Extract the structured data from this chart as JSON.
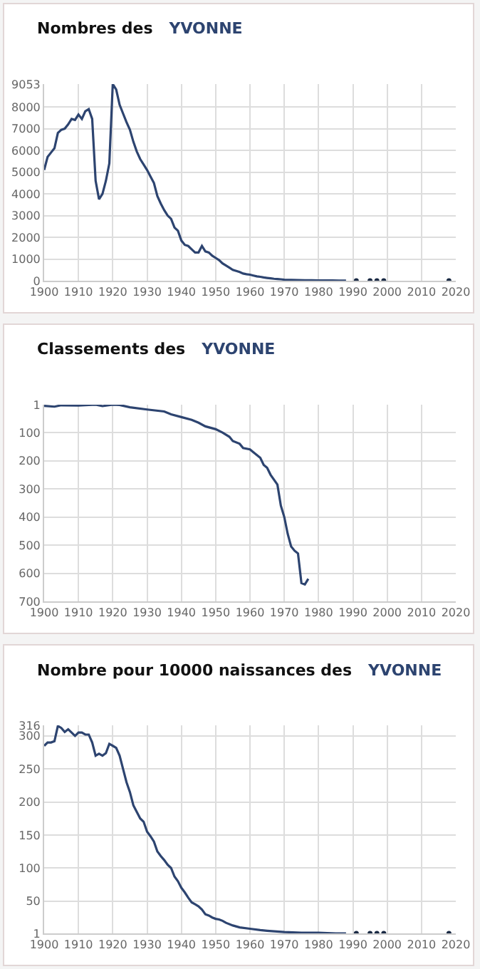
{
  "chart_data": [
    {
      "type": "line",
      "title": "Nombres des",
      "subtitle": "YVONNE",
      "xlim": [
        1900,
        2020
      ],
      "xticks": [
        1900,
        1910,
        1920,
        1930,
        1940,
        1950,
        1960,
        1970,
        1980,
        1990,
        2000,
        2010,
        2020
      ],
      "ylim": [
        0,
        9053
      ],
      "yticks": [
        0,
        1000,
        2000,
        3000,
        4000,
        5000,
        6000,
        7000,
        8000,
        9053
      ],
      "grid": true,
      "series": [
        {
          "color": "#2d4470",
          "x": [
            1900,
            1901,
            1902,
            1903,
            1904,
            1905,
            1906,
            1907,
            1908,
            1909,
            1910,
            1911,
            1912,
            1913,
            1914,
            1915,
            1916,
            1917,
            1918,
            1919,
            1920,
            1921,
            1922,
            1923,
            1924,
            1925,
            1926,
            1927,
            1928,
            1929,
            1930,
            1931,
            1932,
            1933,
            1934,
            1935,
            1936,
            1937,
            1938,
            1939,
            1940,
            1941,
            1942,
            1943,
            1944,
            1945,
            1946,
            1947,
            1948,
            1949,
            1950,
            1951,
            1952,
            1953,
            1954,
            1955,
            1956,
            1957,
            1958,
            1959,
            1960,
            1961,
            1962,
            1963,
            1964,
            1965,
            1966,
            1967,
            1968,
            1969,
            1970,
            1972,
            1974,
            1976,
            1978,
            1980,
            1982,
            1984,
            1986,
            1988
          ],
          "values": [
            5100,
            5700,
            5900,
            6100,
            6800,
            6950,
            7000,
            7200,
            7450,
            7400,
            7650,
            7450,
            7800,
            7900,
            7450,
            4600,
            3750,
            4000,
            4600,
            5400,
            9053,
            8800,
            8100,
            7700,
            7300,
            6950,
            6400,
            5950,
            5600,
            5350,
            5100,
            4800,
            4500,
            3900,
            3550,
            3250,
            3000,
            2850,
            2450,
            2300,
            1850,
            1650,
            1600,
            1450,
            1300,
            1300,
            1600,
            1350,
            1300,
            1150,
            1050,
            950,
            800,
            700,
            600,
            500,
            450,
            400,
            330,
            300,
            280,
            240,
            200,
            180,
            150,
            130,
            110,
            90,
            80,
            65,
            50,
            40,
            30,
            25,
            20,
            15,
            12,
            10,
            8,
            5
          ]
        },
        {
          "type": "scatter",
          "marker": "circle",
          "color": "#1a2a44",
          "x": [
            1991,
            1995,
            1997,
            1999,
            2018
          ],
          "values": [
            0,
            0,
            0,
            0,
            0
          ]
        }
      ]
    },
    {
      "type": "line",
      "title": "Classements des",
      "subtitle": "YVONNE",
      "xlim": [
        1900,
        2020
      ],
      "xticks": [
        1900,
        1910,
        1920,
        1930,
        1940,
        1950,
        1960,
        1970,
        1980,
        1990,
        2000,
        2010,
        2020
      ],
      "ylim": [
        700,
        1
      ],
      "yticks": [
        1,
        100,
        200,
        300,
        400,
        500,
        600,
        700
      ],
      "grid": true,
      "series": [
        {
          "color": "#2d4470",
          "x": [
            1900,
            1903,
            1905,
            1910,
            1915,
            1917,
            1920,
            1922,
            1925,
            1930,
            1935,
            1937,
            1940,
            1943,
            1945,
            1947,
            1950,
            1952,
            1954,
            1955,
            1957,
            1958,
            1960,
            1961,
            1963,
            1964,
            1965,
            1966,
            1968,
            1969,
            1970,
            1971,
            1972,
            1973,
            1974,
            1975,
            1976,
            1977
          ],
          "values": [
            5,
            8,
            3,
            4,
            1,
            6,
            1,
            2,
            10,
            18,
            25,
            35,
            45,
            55,
            65,
            78,
            88,
            100,
            115,
            130,
            140,
            155,
            160,
            170,
            190,
            215,
            225,
            250,
            285,
            360,
            400,
            460,
            505,
            520,
            530,
            635,
            640,
            620
          ]
        }
      ]
    },
    {
      "type": "line",
      "title": "Nombre pour 10000 naissances des",
      "subtitle": "YVONNE",
      "xlim": [
        1900,
        2020
      ],
      "xticks": [
        1900,
        1910,
        1920,
        1930,
        1940,
        1950,
        1960,
        1970,
        1980,
        1990,
        2000,
        2010,
        2020
      ],
      "ylim": [
        1,
        316
      ],
      "yticks": [
        1,
        50,
        100,
        150,
        200,
        250,
        300,
        316
      ],
      "grid": true,
      "series": [
        {
          "color": "#2d4470",
          "x": [
            1900,
            1901,
            1902,
            1903,
            1904,
            1905,
            1906,
            1907,
            1908,
            1909,
            1910,
            1911,
            1912,
            1913,
            1914,
            1915,
            1916,
            1917,
            1918,
            1919,
            1920,
            1921,
            1922,
            1923,
            1924,
            1925,
            1926,
            1927,
            1928,
            1929,
            1930,
            1931,
            1932,
            1933,
            1934,
            1935,
            1936,
            1937,
            1938,
            1939,
            1940,
            1941,
            1942,
            1943,
            1944,
            1945,
            1946,
            1947,
            1948,
            1949,
            1950,
            1951,
            1952,
            1953,
            1955,
            1957,
            1960,
            1963,
            1965,
            1970,
            1975,
            1980,
            1985,
            1988
          ],
          "values": [
            285,
            290,
            290,
            292,
            315,
            312,
            306,
            310,
            305,
            300,
            305,
            305,
            302,
            302,
            290,
            270,
            273,
            270,
            274,
            288,
            285,
            282,
            270,
            250,
            230,
            215,
            195,
            185,
            175,
            170,
            155,
            148,
            140,
            125,
            118,
            112,
            105,
            100,
            87,
            80,
            70,
            63,
            55,
            48,
            45,
            42,
            37,
            30,
            28,
            25,
            23,
            22,
            20,
            17,
            13,
            10,
            8,
            6,
            5,
            3,
            2,
            2,
            1,
            1
          ]
        },
        {
          "type": "scatter",
          "marker": "circle",
          "color": "#1a2a44",
          "x": [
            1991,
            1995,
            1997,
            1999,
            2018
          ],
          "values": [
            1,
            1,
            1,
            1,
            1
          ]
        }
      ]
    }
  ]
}
